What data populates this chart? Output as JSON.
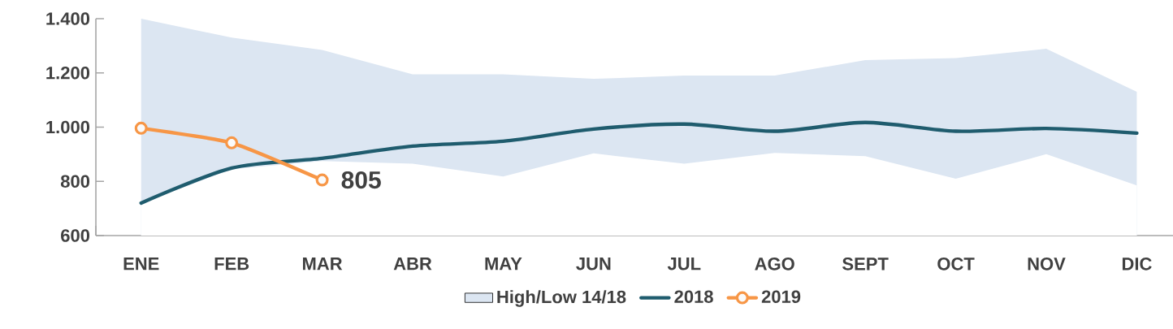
{
  "chart_data": {
    "type": "line",
    "categories": [
      "ENE",
      "FEB",
      "MAR",
      "ABR",
      "MAY",
      "JUN",
      "JUL",
      "AGO",
      "SEPT",
      "OCT",
      "NOV",
      "DIC"
    ],
    "ylim": [
      600,
      1400
    ],
    "yticks": [
      600,
      800,
      {
        "value": 1000,
        "label": "1.000"
      },
      {
        "value": 1200,
        "label": "1.200"
      },
      {
        "value": 1400,
        "label": "1.400"
      }
    ],
    "legend": "bottom",
    "grid": false,
    "series": [
      {
        "name": "High/Low 14/18",
        "type": "area",
        "color": "#dce6f2",
        "values": [
          1400,
          1330,
          1285,
          1195,
          1195,
          1178,
          1190,
          1190,
          1247,
          1255,
          1289,
          1130
        ]
      },
      {
        "type": "area",
        "color": "#ffffff",
        "values": [
          720,
          845,
          875,
          865,
          818,
          903,
          865,
          905,
          893,
          810,
          900,
          785
        ]
      },
      {
        "name": "2018",
        "color": "#1f5c6e",
        "marker": "none",
        "values": [
          720,
          849,
          885,
          930,
          948,
          993,
          1011,
          985,
          1017,
          985,
          995,
          978
        ]
      },
      {
        "name": "2019",
        "color": "#f79646",
        "marker": "circle",
        "values": [
          996,
          942,
          805,
          null,
          null,
          null,
          null,
          null,
          null,
          null,
          null,
          null
        ],
        "value_labels": [
          null,
          null,
          "805",
          null,
          null,
          null,
          null,
          null,
          null,
          null,
          null,
          null
        ]
      }
    ]
  }
}
